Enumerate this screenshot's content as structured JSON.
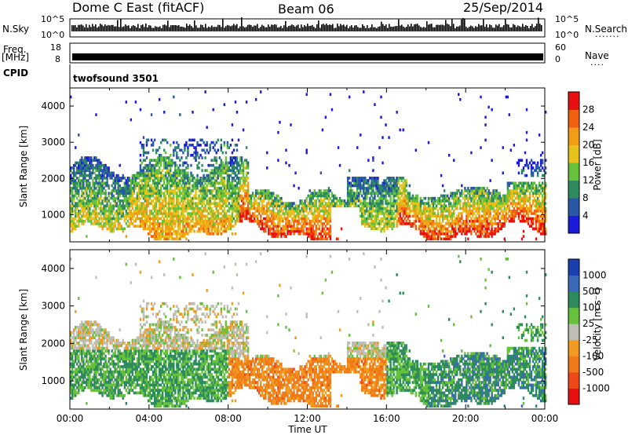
{
  "header": {
    "radar": "Dome C East (fitACF)",
    "beam": "Beam 06",
    "date": "25/Sep/2014"
  },
  "panels": {
    "nsky_label": "N.Sky",
    "nsky_ticks": [
      "10^5",
      "10^0"
    ],
    "nsearch_label": "N.Search",
    "nsearch_ticks": [
      "10^5",
      "10^0"
    ],
    "freq_label": "Freq.",
    "freq_unit": "[MHz]",
    "freq_ticks": [
      "18",
      "8"
    ],
    "nave_label": "Nave",
    "nave_ticks": [
      "60",
      "0"
    ],
    "cpid_label": "CPID",
    "cpid_value": "twofsound 3501"
  },
  "colors": {
    "power": [
      "#1a1ad9",
      "#2a57a8",
      "#2e8b5e",
      "#66c23a",
      "#e6c21a",
      "#f39c16",
      "#f06010",
      "#e81010"
    ],
    "velocity": [
      "#e81010",
      "#f04818",
      "#f07a18",
      "#f09a20",
      "#bebeb4",
      "#66c23a",
      "#2e8b5e",
      "#3a6ab8",
      "#1a40b0"
    ]
  },
  "chart_data": [
    {
      "type": "heatmap",
      "quantity": "Power",
      "ylabel": "Slant Range [km]",
      "ylim": [
        250,
        4500
      ],
      "yticks": [
        "4000",
        "3000",
        "2000",
        "1000"
      ],
      "xlim": [
        0,
        24
      ],
      "colorbar_label": "Power [dB]",
      "colorbar_ticks": [
        "28",
        "24",
        "20",
        "16",
        "12",
        "8",
        "4"
      ]
    },
    {
      "type": "heatmap",
      "quantity": "Velocity",
      "ylabel": "Slant Range [km]",
      "ylim": [
        250,
        4500
      ],
      "yticks": [
        "4000",
        "3000",
        "2000",
        "1000"
      ],
      "xlim": [
        0,
        24
      ],
      "colorbar_label": "Velocity [m s⁻¹]",
      "colorbar_ticks": [
        "1000",
        "500",
        "100",
        "25",
        "-25",
        "-100",
        "-500",
        "-1000"
      ],
      "xlabel": "Time UT",
      "xticks": [
        "00:00",
        "04:00",
        "08:00",
        "12:00",
        "16:00",
        "20:00",
        "00:00"
      ]
    }
  ]
}
